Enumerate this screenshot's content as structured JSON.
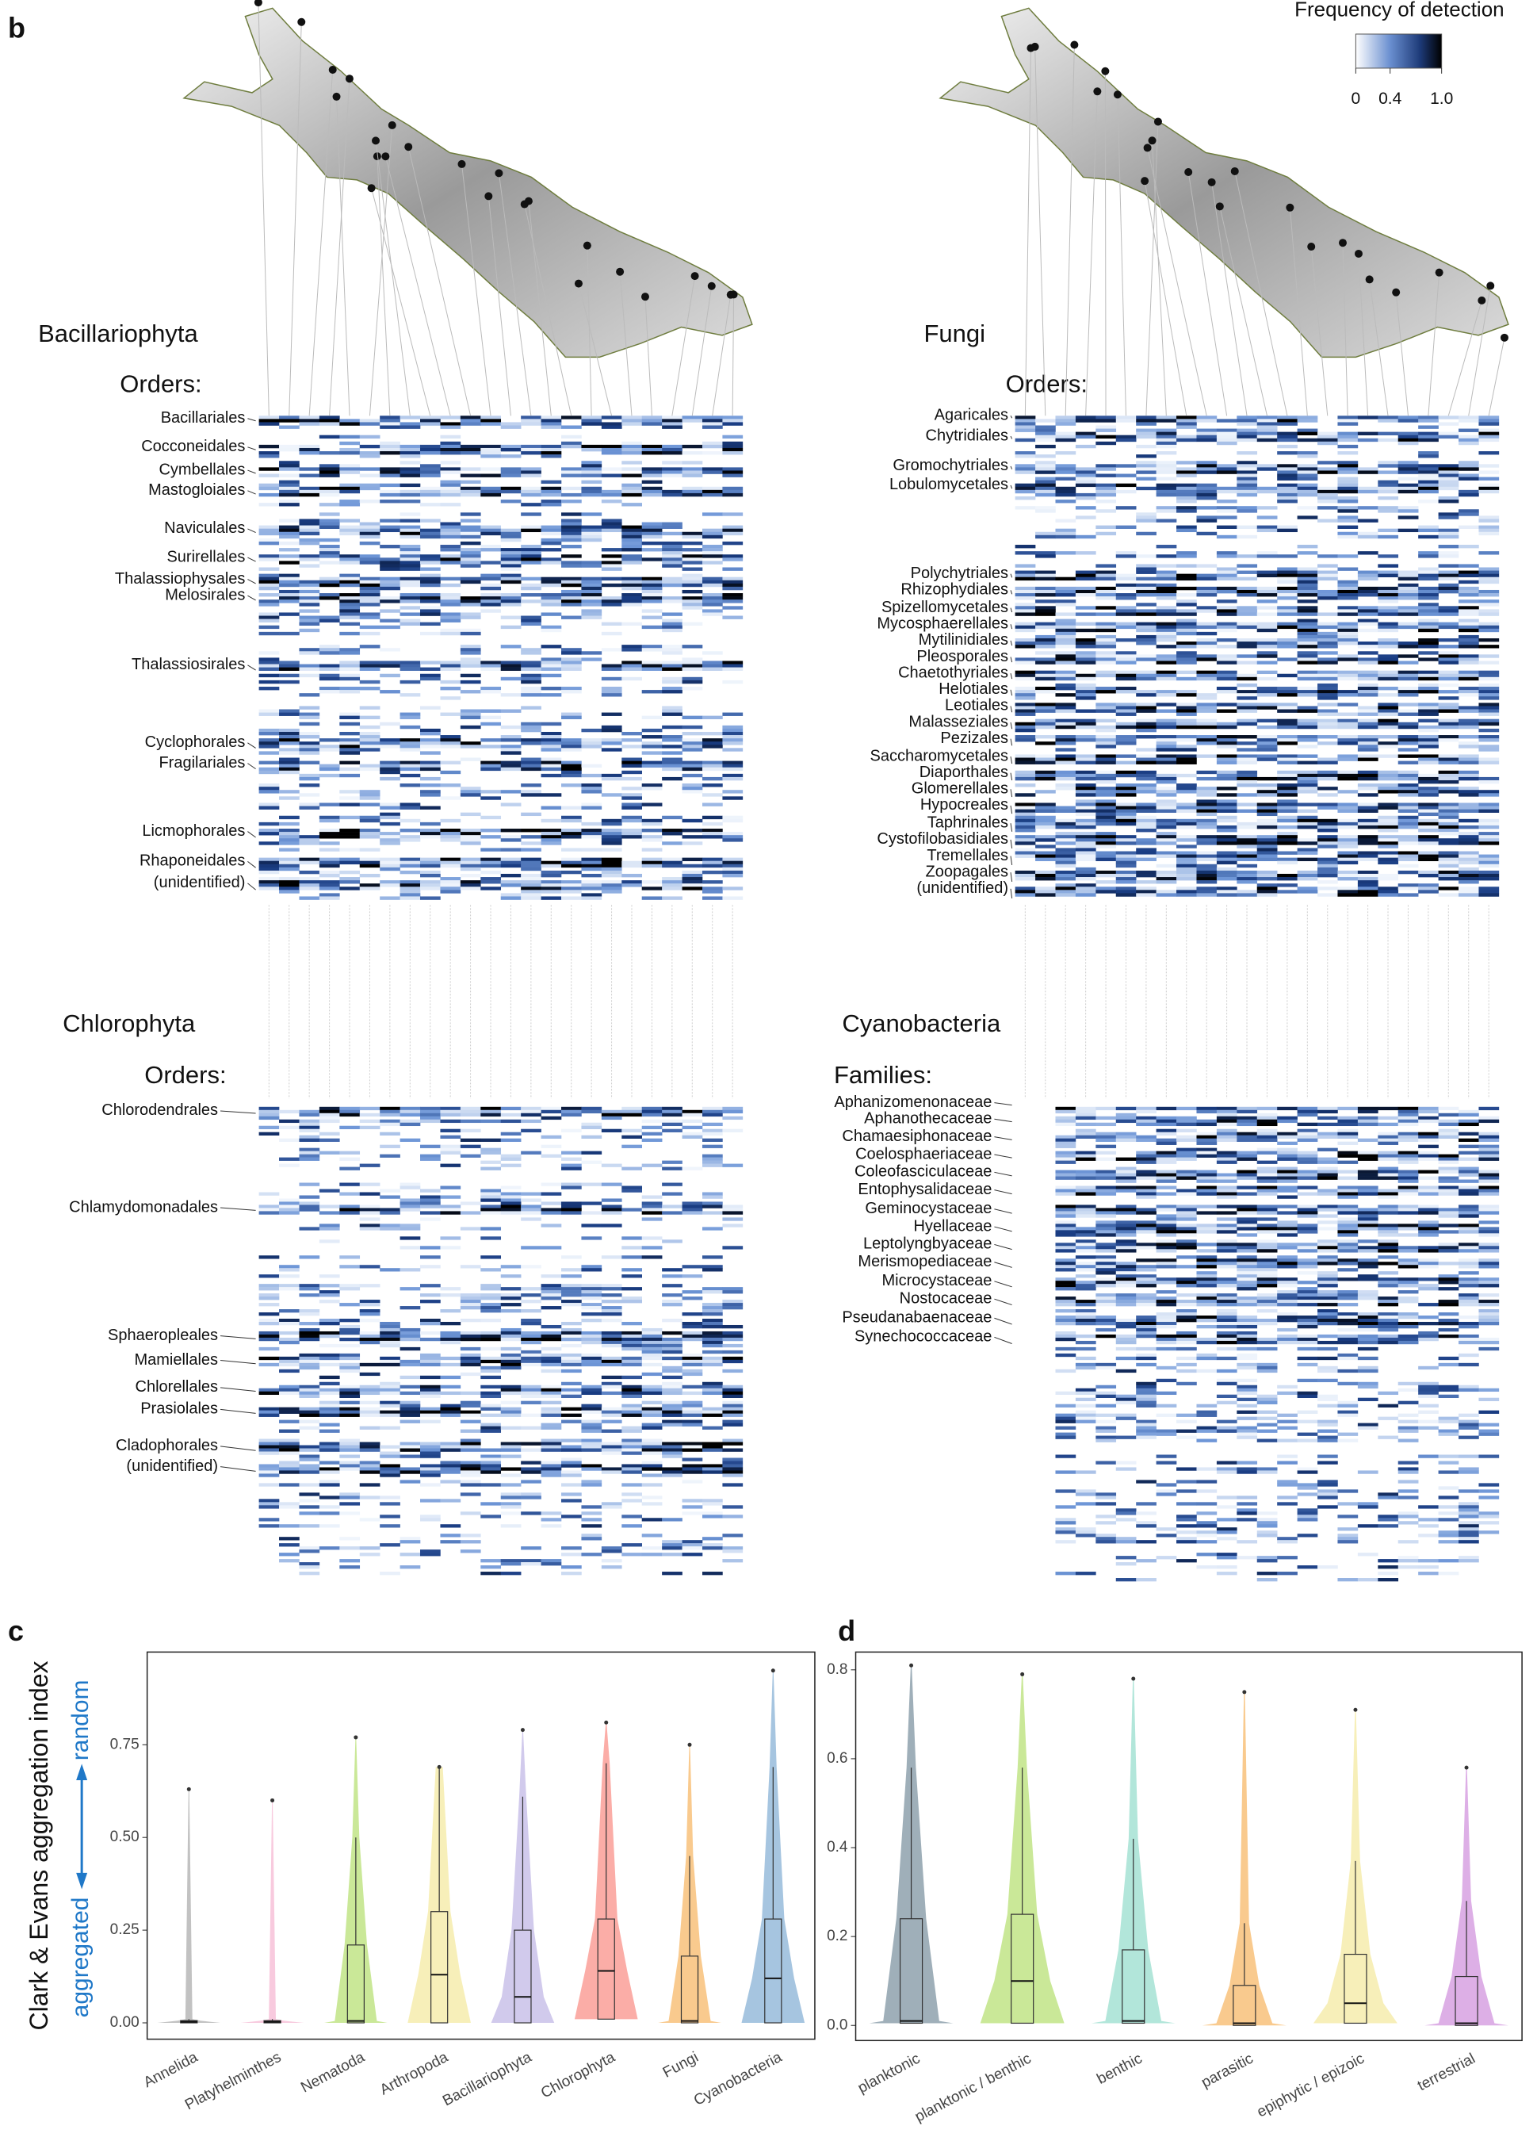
{
  "panel_b": {
    "label": "b",
    "legend": {
      "title": "Frequency of detection",
      "lim": [
        0,
        1
      ],
      "ticks": [
        0,
        0.4,
        {
          "value": 1,
          "label": "1.0"
        }
      ]
    },
    "panels": [
      {
        "taxon": "Bacillariophyta",
        "rank_label": "Orders:",
        "rows": [
          "Bacillariales",
          "Cocconeidales",
          "Cymbellales",
          "Mastogloiales",
          "Naviculales",
          "Surirellales",
          "Thalassiophysales",
          "Melosirales",
          "Thalassiosirales",
          "Cyclophorales",
          "Fragilariales",
          "Licmophorales",
          "Rhaponeidales",
          "(unidentified)"
        ]
      },
      {
        "taxon": "Fungi",
        "rank_label": "Orders:",
        "rows": [
          "Agaricales",
          "Chytridiales",
          "Gromochytriales",
          "Lobulomycetales",
          "Polychytriales",
          "Rhizophydiales",
          "Spizellomycetales",
          "Mycosphaerellales",
          "Mytilinidiales",
          "Pleosporales",
          "Chaetothyriales",
          "Helotiales",
          "Leotiales",
          "Malasseziales",
          "Pezizales",
          "Saccharomycetales",
          "Diaporthales",
          "Glomerellales",
          "Hypocreales",
          "Taphrinales",
          "Cystofilobasidiales",
          "Tremellales",
          "Zoopagales",
          "(unidentified)"
        ]
      },
      {
        "taxon": "Chlorophyta",
        "rank_label": "Orders:",
        "rows": [
          "Chlorodendrales",
          "Chlamydomonadales",
          "Sphaeropleales",
          "Mamiellales",
          "Chlorellales",
          "Prasiolales",
          "Cladophorales",
          "(unidentified)"
        ]
      },
      {
        "taxon": "Cyanobacteria",
        "rank_label": "Families:",
        "rows": [
          "Aphanizomenonaceae",
          "Aphanothecaceae",
          "Chamaesiphonaceae",
          "Coelosphaeriaceae",
          "Coleofasciculaceae",
          "Entophysalidaceae",
          "Geminocystaceae",
          "Hyellaceae",
          "Leptolyngbyaceae",
          "Merismopediaceae",
          "Microcystaceae",
          "Nostocaceae",
          "Pseudanabaenaceae",
          "Synechococcaceae"
        ]
      }
    ]
  },
  "chart_data": [
    {
      "type": "box",
      "panel_label": "c",
      "ylabel": "Clark & Evans aggregation index",
      "ylabel_top": "random",
      "ylabel_bottom": "aggregated",
      "ylim": [
        -0.044,
        1.0
      ],
      "yticks": [
        {
          "value": 0,
          "label": "0.00"
        },
        0.25,
        {
          "value": 0.5,
          "label": "0.50"
        },
        0.75
      ],
      "boxes": [
        {
          "name": "Annelida",
          "color": "#9a9a9a",
          "q1": 0,
          "median": 0.003,
          "q3": 0.006,
          "whisker_high": 0.01,
          "max": 0.63
        },
        {
          "name": "Platyhelminthes",
          "color": "#f4a6c8",
          "q1": 0,
          "median": 0.003,
          "q3": 0.006,
          "whisker_high": 0.01,
          "max": 0.6
        },
        {
          "name": "Nematoda",
          "color": "#a6d854",
          "q1": 0,
          "median": 0.005,
          "q3": 0.21,
          "whisker_high": 0.5,
          "max": 0.77
        },
        {
          "name": "Arthropoda",
          "color": "#f1e48a",
          "q1": 0,
          "median": 0.13,
          "q3": 0.3,
          "whisker_high": 0.69,
          "max": 0.69
        },
        {
          "name": "Bacillariophyta",
          "color": "#b3a6e0",
          "q1": 0,
          "median": 0.07,
          "q3": 0.25,
          "whisker_high": 0.61,
          "max": 0.79
        },
        {
          "name": "Chlorophyta",
          "color": "#f8766d",
          "q1": 0.01,
          "median": 0.14,
          "q3": 0.28,
          "whisker_high": 0.7,
          "max": 0.81
        },
        {
          "name": "Fungi",
          "color": "#f5a742",
          "q1": 0,
          "median": 0.005,
          "q3": 0.18,
          "whisker_high": 0.45,
          "max": 0.75
        },
        {
          "name": "Cyanobacteria",
          "color": "#6a9ecb",
          "q1": 0,
          "median": 0.12,
          "q3": 0.28,
          "whisker_high": 0.69,
          "max": 0.95
        }
      ]
    },
    {
      "type": "box",
      "panel_label": "d",
      "ylim": [
        -0.034,
        0.84
      ],
      "yticks": [
        {
          "value": 0,
          "label": "0.0"
        },
        0.2,
        0.4,
        0.6,
        0.8
      ],
      "boxes": [
        {
          "name": "planktonic",
          "color": "#5f7a8a",
          "q1": 0.005,
          "median": 0.01,
          "q3": 0.24,
          "whisker_high": 0.58,
          "max": 0.81
        },
        {
          "name": "planktonic / benthic",
          "color": "#a6d854",
          "q1": 0.005,
          "median": 0.1,
          "q3": 0.25,
          "whisker_high": 0.58,
          "max": 0.79
        },
        {
          "name": "benthic",
          "color": "#7fd6c1",
          "q1": 0.005,
          "median": 0.01,
          "q3": 0.17,
          "whisker_high": 0.42,
          "max": 0.78
        },
        {
          "name": "parasitic",
          "color": "#f5a742",
          "q1": 0,
          "median": 0.005,
          "q3": 0.09,
          "whisker_high": 0.23,
          "max": 0.75
        },
        {
          "name": "epiphytic / epizoic",
          "color": "#f1e48a",
          "q1": 0.005,
          "median": 0.05,
          "q3": 0.16,
          "whisker_high": 0.37,
          "max": 0.71
        },
        {
          "name": "terrestrial",
          "color": "#c67ad6",
          "q1": 0,
          "median": 0.005,
          "q3": 0.11,
          "whisker_high": 0.28,
          "max": 0.58
        }
      ]
    }
  ]
}
